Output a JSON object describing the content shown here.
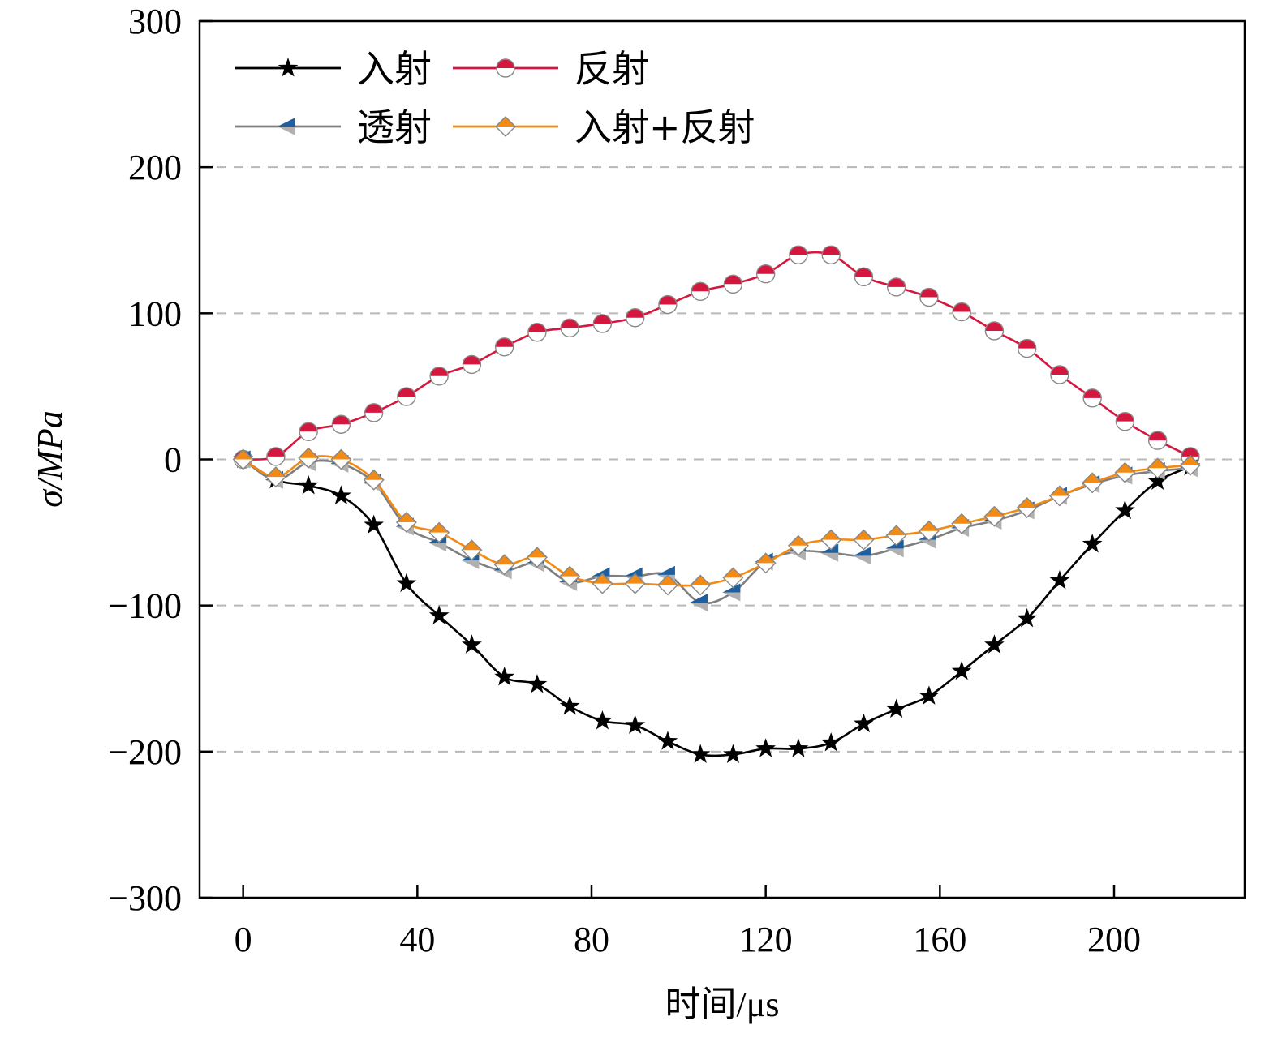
{
  "chart_data": {
    "type": "line",
    "title": "",
    "xlabel": "时间/μs",
    "ylabel": "σ/MPa",
    "xlim": [
      -10,
      230
    ],
    "ylim": [
      -300,
      300
    ],
    "xticks": [
      0,
      40,
      80,
      120,
      160,
      200
    ],
    "xtick_labels": [
      "0",
      "40",
      "80",
      "120",
      "160",
      "200"
    ],
    "yticks": [
      -300,
      -200,
      -100,
      0,
      100,
      200,
      300
    ],
    "ytick_labels": [
      "−300",
      "−200",
      "−100",
      "0",
      "100",
      "200",
      "300"
    ],
    "grid": "horizontal dashed",
    "legend_position": "top-left",
    "x": [
      0,
      7.5,
      15,
      22.5,
      30,
      37.5,
      45,
      52.5,
      60,
      67.5,
      75,
      82.5,
      90,
      97.5,
      105,
      112.5,
      120,
      127.5,
      135,
      142.5,
      150,
      157.5,
      165,
      172.5,
      180,
      187.5,
      195,
      202.5,
      210,
      217.5
    ],
    "series": [
      {
        "name": "入射",
        "color": "#000000",
        "marker": "star",
        "values": [
          0,
          -14,
          -18,
          -25,
          -45,
          -85,
          -107,
          -127,
          -149,
          -154,
          -169,
          -179,
          -182,
          -193,
          -202,
          -202,
          -198,
          -198,
          -194,
          -181,
          -171,
          -162,
          -145,
          -127,
          -109,
          -83,
          -58,
          -35,
          -15,
          -5
        ]
      },
      {
        "name": "反射",
        "color": "#d4173e",
        "marker": "half-circle",
        "values": [
          0,
          2,
          19,
          24,
          32,
          43,
          57,
          65,
          77,
          87,
          90,
          93,
          97,
          106,
          115,
          120,
          127,
          140,
          140,
          125,
          118,
          111,
          101,
          88,
          76,
          58,
          42,
          26,
          13,
          2
        ]
      },
      {
        "name": "透射",
        "color": "#7f7f7f",
        "marker_color": "#1f5fa0",
        "marker": "left-triangle",
        "values": [
          0,
          -14,
          -2,
          -3,
          -16,
          -46,
          -57,
          -69,
          -76,
          -71,
          -84,
          -80,
          -80,
          -79,
          -98,
          -91,
          -70,
          -63,
          -64,
          -66,
          -61,
          -55,
          -47,
          -42,
          -35,
          -25,
          -17,
          -11,
          -8,
          -6
        ]
      },
      {
        "name": "入射+反射",
        "color": "#f28a14",
        "marker": "half-diamond",
        "values": [
          0,
          -12,
          1,
          0,
          -14,
          -43,
          -50,
          -62,
          -72,
          -67,
          -80,
          -85,
          -85,
          -86,
          -86,
          -81,
          -71,
          -59,
          -55,
          -55,
          -52,
          -49,
          -44,
          -39,
          -33,
          -25,
          -16,
          -9,
          -6,
          -4
        ]
      }
    ]
  }
}
